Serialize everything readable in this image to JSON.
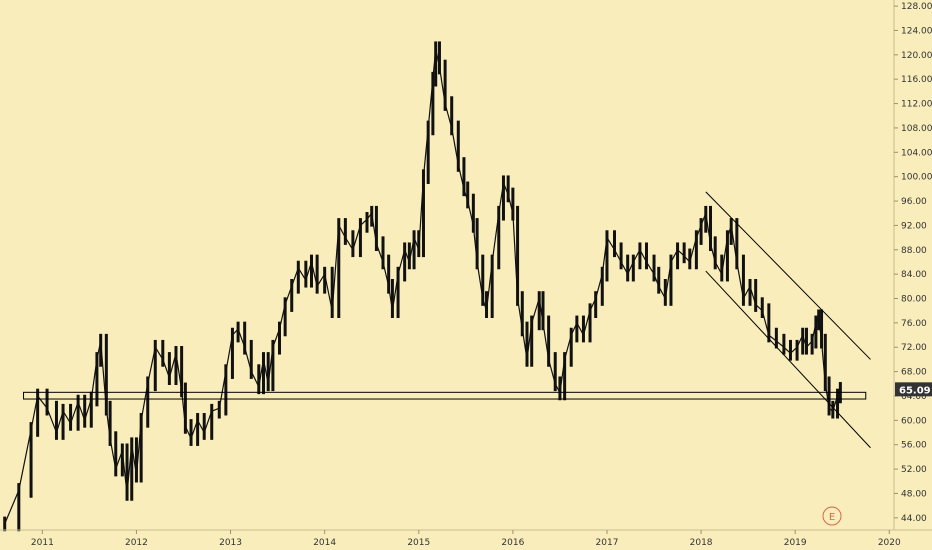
{
  "chart_data": {
    "type": "candlestick",
    "title": "",
    "xlabel": "",
    "ylabel": "",
    "x_ticks": [
      "2011",
      "2012",
      "2013",
      "2014",
      "2015",
      "2016",
      "2017",
      "2018",
      "2019",
      "2020"
    ],
    "y_ticks": [
      "44.00",
      "48.00",
      "52.00",
      "56.00",
      "60.00",
      "64.00",
      "68.00",
      "72.00",
      "76.00",
      "80.00",
      "84.00",
      "88.00",
      "92.00",
      "96.00",
      "100.00",
      "104.00",
      "108.00",
      "112.00",
      "116.00",
      "120.00",
      "124.00",
      "128.00"
    ],
    "xlim": [
      2010.55,
      2020.05
    ],
    "ylim": [
      42.0,
      129.0
    ],
    "grid": false,
    "last_price": "65.09",
    "event_marker": "E",
    "series": [
      {
        "values": [
          [
            2010.6,
            43.0
          ],
          [
            2010.75,
            48.5
          ],
          [
            2010.88,
            58.5
          ],
          [
            2010.95,
            64.0
          ],
          [
            2011.05,
            62.0
          ],
          [
            2011.15,
            58.0
          ],
          [
            2011.22,
            61.5
          ],
          [
            2011.3,
            59.5
          ],
          [
            2011.38,
            63.0
          ],
          [
            2011.45,
            60.0
          ],
          [
            2011.52,
            63.5
          ],
          [
            2011.58,
            70.0
          ],
          [
            2011.62,
            73.0
          ],
          [
            2011.68,
            62.0
          ],
          [
            2011.72,
            57.0
          ],
          [
            2011.78,
            52.0
          ],
          [
            2011.85,
            55.0
          ],
          [
            2011.9,
            48.0
          ],
          [
            2011.95,
            56.0
          ],
          [
            2012.0,
            51.0
          ],
          [
            2012.05,
            60.0
          ],
          [
            2012.12,
            66.0
          ],
          [
            2012.2,
            72.0
          ],
          [
            2012.28,
            70.0
          ],
          [
            2012.35,
            67.0
          ],
          [
            2012.42,
            71.0
          ],
          [
            2012.48,
            65.0
          ],
          [
            2012.52,
            59.0
          ],
          [
            2012.58,
            57.0
          ],
          [
            2012.65,
            60.0
          ],
          [
            2012.72,
            58.0
          ],
          [
            2012.8,
            61.5
          ],
          [
            2012.88,
            62.0
          ],
          [
            2012.95,
            68.0
          ],
          [
            2013.02,
            74.0
          ],
          [
            2013.08,
            75.0
          ],
          [
            2013.15,
            72.0
          ],
          [
            2013.22,
            68.0
          ],
          [
            2013.3,
            65.5
          ],
          [
            2013.35,
            70.0
          ],
          [
            2013.4,
            66.0
          ],
          [
            2013.45,
            72.0
          ],
          [
            2013.52,
            75.0
          ],
          [
            2013.58,
            79.0
          ],
          [
            2013.65,
            82.0
          ],
          [
            2013.72,
            85.0
          ],
          [
            2013.8,
            83.0
          ],
          [
            2013.86,
            86.0
          ],
          [
            2013.92,
            82.0
          ],
          [
            2014.0,
            84.0
          ],
          [
            2014.08,
            78.0
          ],
          [
            2014.15,
            92.0
          ],
          [
            2014.22,
            90.0
          ],
          [
            2014.3,
            88.0
          ],
          [
            2014.38,
            92.0
          ],
          [
            2014.45,
            93.0
          ],
          [
            2014.5,
            94.0
          ],
          [
            2014.55,
            89.0
          ],
          [
            2014.62,
            86.0
          ],
          [
            2014.68,
            82.0
          ],
          [
            2014.72,
            78.0
          ],
          [
            2014.78,
            84.0
          ],
          [
            2014.85,
            88.0
          ],
          [
            2014.9,
            86.0
          ],
          [
            2014.95,
            90.0
          ],
          [
            2015.0,
            88.0
          ],
          [
            2015.05,
            100.0
          ],
          [
            2015.1,
            108.0
          ],
          [
            2015.15,
            116.0
          ],
          [
            2015.18,
            121.0
          ],
          [
            2015.22,
            118.0
          ],
          [
            2015.28,
            112.0
          ],
          [
            2015.35,
            108.0
          ],
          [
            2015.42,
            102.0
          ],
          [
            2015.48,
            98.0
          ],
          [
            2015.52,
            96.0
          ],
          [
            2015.58,
            92.0
          ],
          [
            2015.62,
            86.0
          ],
          [
            2015.68,
            80.0
          ],
          [
            2015.72,
            78.0
          ],
          [
            2015.78,
            86.0
          ],
          [
            2015.85,
            94.0
          ],
          [
            2015.9,
            99.0
          ],
          [
            2015.95,
            97.0
          ],
          [
            2016.0,
            94.0
          ],
          [
            2016.05,
            80.0
          ],
          [
            2016.1,
            75.0
          ],
          [
            2016.15,
            70.0
          ],
          [
            2016.2,
            76.0
          ],
          [
            2016.28,
            80.0
          ],
          [
            2016.32,
            76.0
          ],
          [
            2016.38,
            70.0
          ],
          [
            2016.45,
            66.0
          ],
          [
            2016.5,
            64.5
          ],
          [
            2016.55,
            70.0
          ],
          [
            2016.62,
            74.0
          ],
          [
            2016.68,
            76.0
          ],
          [
            2016.75,
            74.0
          ],
          [
            2016.82,
            78.0
          ],
          [
            2016.88,
            80.0
          ],
          [
            2016.95,
            84.0
          ],
          [
            2017.0,
            90.0
          ],
          [
            2017.08,
            88.0
          ],
          [
            2017.15,
            86.0
          ],
          [
            2017.22,
            84.0
          ],
          [
            2017.28,
            86.0
          ],
          [
            2017.35,
            88.0
          ],
          [
            2017.42,
            86.0
          ],
          [
            2017.5,
            84.0
          ],
          [
            2017.55,
            82.0
          ],
          [
            2017.62,
            80.0
          ],
          [
            2017.68,
            86.0
          ],
          [
            2017.75,
            88.0
          ],
          [
            2017.82,
            87.0
          ],
          [
            2017.88,
            86.0
          ],
          [
            2017.95,
            90.0
          ],
          [
            2018.0,
            92.0
          ],
          [
            2018.05,
            94.0
          ],
          [
            2018.1,
            89.0
          ],
          [
            2018.15,
            86.0
          ],
          [
            2018.22,
            84.0
          ],
          [
            2018.28,
            90.0
          ],
          [
            2018.32,
            92.0
          ],
          [
            2018.38,
            86.0
          ],
          [
            2018.45,
            80.0
          ],
          [
            2018.52,
            82.0
          ],
          [
            2018.58,
            79.0
          ],
          [
            2018.65,
            78.0
          ],
          [
            2018.72,
            74.0
          ],
          [
            2018.8,
            73.0
          ],
          [
            2018.88,
            72.0
          ],
          [
            2018.95,
            71.0
          ],
          [
            2019.02,
            72.0
          ],
          [
            2019.08,
            74.0
          ],
          [
            2019.12,
            72.0
          ],
          [
            2019.18,
            73.0
          ],
          [
            2019.22,
            76.0
          ],
          [
            2019.25,
            77.0
          ],
          [
            2019.28,
            73.0
          ],
          [
            2019.32,
            66.0
          ],
          [
            2019.36,
            62.0
          ],
          [
            2019.4,
            61.5
          ],
          [
            2019.45,
            64.0
          ],
          [
            2019.48,
            65.09
          ]
        ]
      }
    ],
    "annotations": [
      {
        "type": "horizontal-band",
        "y_low": 63.5,
        "y_high": 64.6,
        "x_start": 2010.8,
        "x_end": 2019.75
      },
      {
        "type": "trend-line",
        "x1": 2018.05,
        "y1": 97.5,
        "x2": 2019.8,
        "y2": 70.0
      },
      {
        "type": "trend-line",
        "x1": 2018.05,
        "y1": 84.5,
        "x2": 2019.8,
        "y2": 55.5
      }
    ],
    "colors": {
      "background": "#f9edbb",
      "candles": "#111111",
      "drawings": "#000000",
      "price_badge": "#333333",
      "event_marker": "#d46a4c"
    }
  }
}
